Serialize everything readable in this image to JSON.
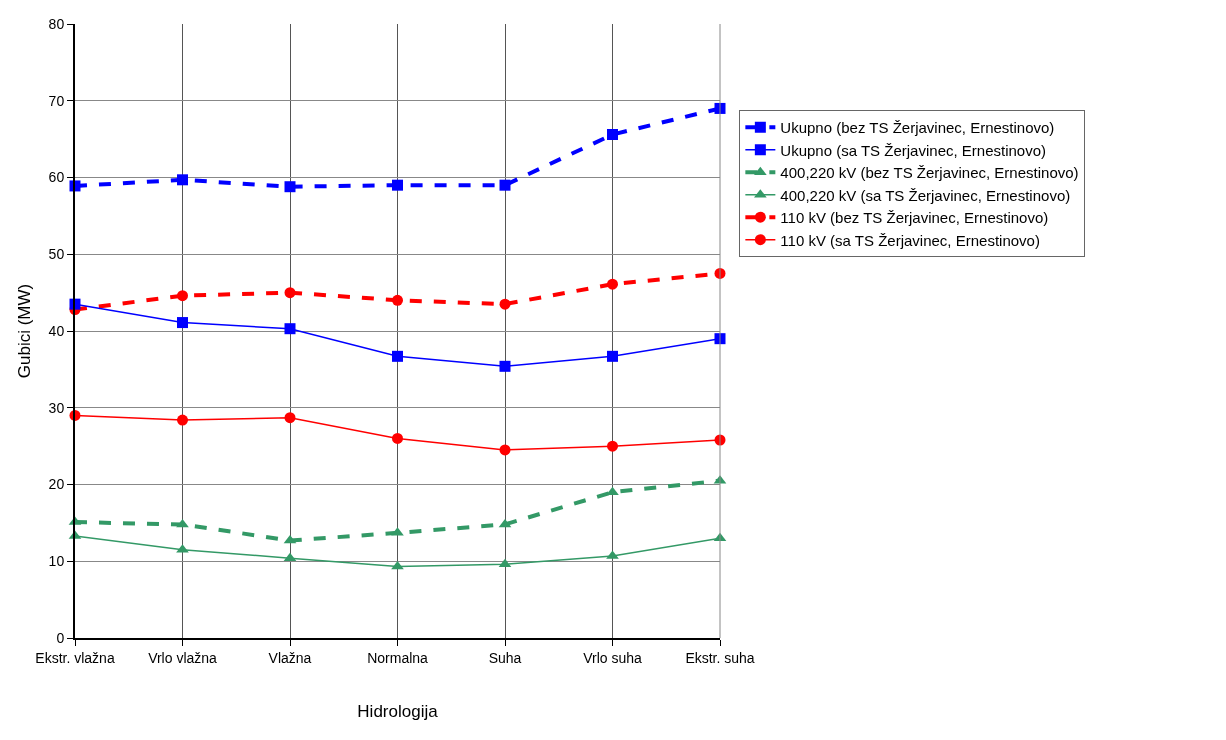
{
  "chart_data": {
    "type": "line",
    "xlabel": "Hidrologija",
    "ylabel": "Gubici (MW)",
    "categories": [
      "Ekstr. vlažna",
      "Vrlo vlažna",
      "Vlažna",
      "Normalna",
      "Suha",
      "Vrlo suha",
      "Ekstr. suha"
    ],
    "ylim": [
      0,
      80
    ],
    "yticks": [
      0,
      10,
      20,
      30,
      40,
      50,
      60,
      70,
      80
    ],
    "grid": true,
    "legend": "right",
    "series": [
      {
        "name": "Ukupno (bez TS Žerjavinec, Ernestinovo)",
        "color": "#0000ff",
        "marker": "square",
        "line_style": "dashed",
        "values": [
          58.9,
          59.7,
          58.8,
          59.0,
          59.0,
          65.6,
          69.0
        ]
      },
      {
        "name": "Ukupno (sa TS Žerjavinec, Ernestinovo)",
        "color": "#0000ff",
        "marker": "square",
        "line_style": "solid",
        "values": [
          43.5,
          41.1,
          40.3,
          36.7,
          35.4,
          36.7,
          39.0
        ]
      },
      {
        "name": "400,220 kV (bez TS Žerjavinec, Ernestinovo)",
        "color": "#339966",
        "marker": "triangle",
        "line_style": "dashed",
        "values": [
          15.1,
          14.8,
          12.7,
          13.7,
          14.8,
          19.0,
          20.5
        ]
      },
      {
        "name": "400,220 kV (sa TS Žerjavinec, Ernestinovo)",
        "color": "#339966",
        "marker": "triangle",
        "line_style": "solid",
        "values": [
          13.3,
          11.5,
          10.4,
          9.3,
          9.6,
          10.7,
          13.0
        ]
      },
      {
        "name": "110 kV (bez TS Žerjavinec, Ernestinovo)",
        "color": "#ff0000",
        "marker": "circle",
        "line_style": "dashed",
        "values": [
          42.8,
          44.6,
          45.0,
          44.0,
          43.5,
          46.1,
          47.5
        ]
      },
      {
        "name": "110 kV (sa TS Žerjavinec, Ernestinovo)",
        "color": "#ff0000",
        "marker": "circle",
        "line_style": "solid",
        "values": [
          29.0,
          28.4,
          28.7,
          26.0,
          24.5,
          25.0,
          25.8
        ]
      }
    ]
  }
}
